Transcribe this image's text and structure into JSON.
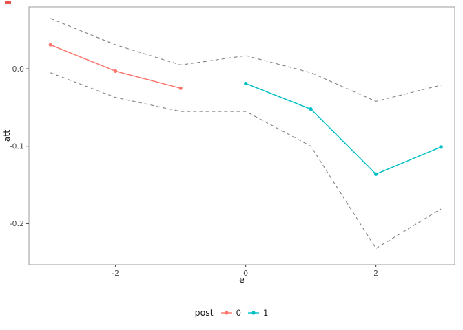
{
  "chart_data": {
    "type": "line",
    "title": "",
    "xlabel": "e",
    "ylabel": "att",
    "xlim": [
      -3.33,
      3.21
    ],
    "ylim": [
      -0.253,
      0.08
    ],
    "x_ticks": [
      -2,
      0,
      2
    ],
    "x_tick_labels": [
      "-2",
      "0",
      "2"
    ],
    "y_ticks": [
      0,
      -0.1,
      -0.2
    ],
    "y_tick_labels": [
      "0.0",
      "-0.1",
      "-0.2"
    ],
    "grid": "off",
    "panel_border_color": "#9b9b9b",
    "tick_color": "#333333",
    "tick_label_color": "#4d4d4d",
    "ci_color": "#7f7f7f",
    "legend": {
      "title": "post",
      "position": "bottom",
      "entries": [
        {
          "label": "0",
          "color": "#F8766D"
        },
        {
          "label": "1",
          "color": "#00BFC4"
        }
      ]
    },
    "series": [
      {
        "name": "post-0-estimate",
        "color": "#F8766D",
        "dashed": false,
        "points": true,
        "x": [
          -3,
          -2,
          -1
        ],
        "y": [
          0.031,
          -0.003,
          -0.025
        ]
      },
      {
        "name": "post-1-estimate",
        "color": "#00BFC4",
        "dashed": false,
        "points": true,
        "x": [
          0,
          1,
          2,
          3
        ],
        "y": [
          -0.019,
          -0.052,
          -0.136,
          -0.101
        ]
      },
      {
        "name": "confidence-band-upper",
        "color": "#7f7f7f",
        "dashed": true,
        "points": false,
        "x": [
          -3,
          -2,
          -1,
          0,
          1,
          2,
          3
        ],
        "y": [
          0.065,
          0.031,
          0.005,
          0.017,
          -0.005,
          -0.042,
          -0.021
        ]
      },
      {
        "name": "confidence-band-lower",
        "color": "#7f7f7f",
        "dashed": true,
        "points": false,
        "x": [
          -3,
          -2,
          -1,
          0,
          1,
          2,
          3
        ],
        "y": [
          -0.005,
          -0.037,
          -0.055,
          -0.055,
          -0.1,
          -0.232,
          -0.181
        ]
      }
    ]
  }
}
